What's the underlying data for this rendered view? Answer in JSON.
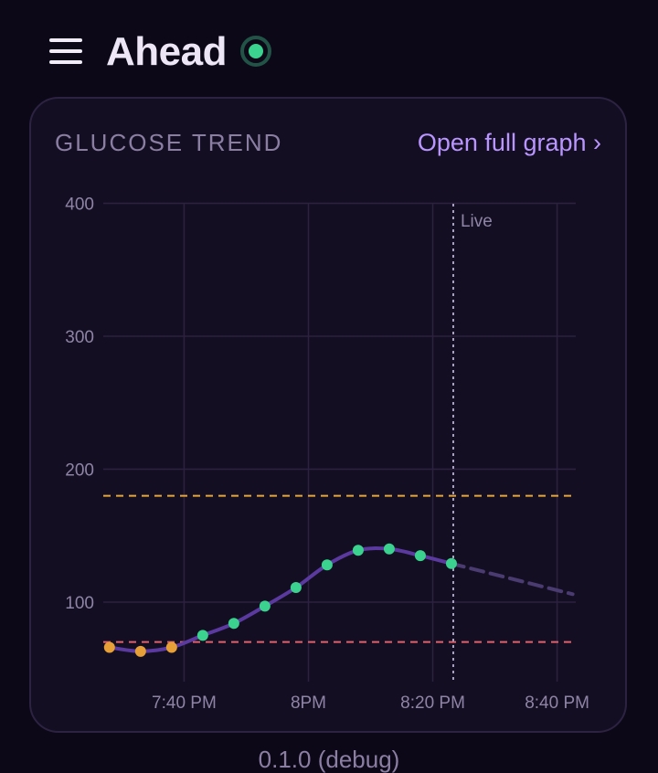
{
  "header": {
    "app_name": "Ahead",
    "status_color": "#3ad28e"
  },
  "card": {
    "title": "GLUCOSE TREND",
    "open_full_graph": "Open full graph ›"
  },
  "chart_data": {
    "type": "line",
    "y_ticks": [
      100,
      200,
      300,
      400
    ],
    "ylim": [
      40,
      400
    ],
    "x_ticks": [
      "7:40 PM",
      "8PM",
      "8:20 PM",
      "8:40 PM"
    ],
    "x_tick_minutes": [
      40,
      60,
      80,
      100
    ],
    "xlim_minutes": [
      27,
      103
    ],
    "live_label": "Live",
    "live_minute": 83.3,
    "high_threshold": 180,
    "low_threshold": 70,
    "series": [
      {
        "points": [
          {
            "minute": 28.0,
            "value": 66,
            "zone": "low"
          },
          {
            "minute": 33.0,
            "value": 63,
            "zone": "low"
          },
          {
            "minute": 38.0,
            "value": 66,
            "zone": "low"
          },
          {
            "minute": 43.0,
            "value": 75,
            "zone": "in-range"
          },
          {
            "minute": 48.0,
            "value": 84,
            "zone": "in-range"
          },
          {
            "minute": 53.0,
            "value": 97,
            "zone": "in-range"
          },
          {
            "minute": 58.0,
            "value": 111,
            "zone": "in-range"
          },
          {
            "minute": 63.0,
            "value": 128,
            "zone": "in-range"
          },
          {
            "minute": 68.0,
            "value": 139,
            "zone": "in-range"
          },
          {
            "minute": 73.0,
            "value": 140,
            "zone": "in-range"
          },
          {
            "minute": 78.0,
            "value": 135,
            "zone": "in-range"
          },
          {
            "minute": 83.0,
            "value": 129,
            "zone": "in-range"
          }
        ]
      }
    ],
    "forecast": [
      {
        "minute": 83.0,
        "value": 129
      },
      {
        "minute": 102.5,
        "value": 106
      }
    ],
    "grid": true,
    "colors": {
      "line": "#5b3aa0",
      "in_range_point": "#3ad28e",
      "low_point": "#e6a037",
      "high_threshold": "#e6a63a",
      "low_threshold": "#e0606c",
      "forecast": "#4a3b70",
      "grid": "#2b2240",
      "axis_text": "#8e84a6",
      "live_line": "#a9a0c4"
    }
  },
  "footer": {
    "partial_text": "0.1.0 (debug)"
  }
}
